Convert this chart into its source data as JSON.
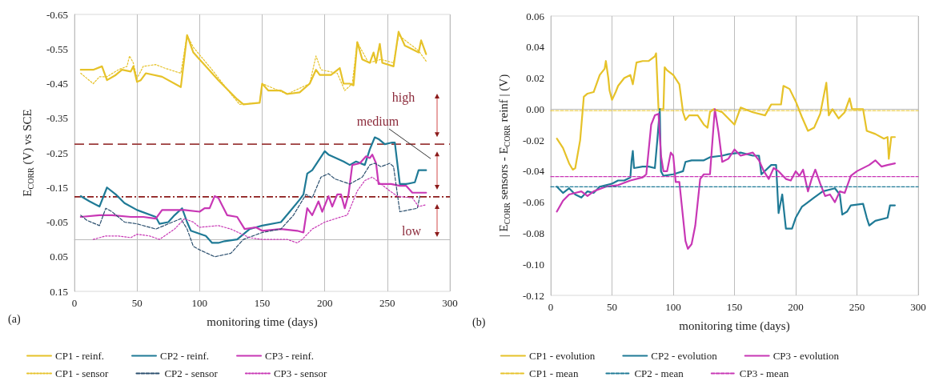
{
  "chart_data": [
    {
      "type": "line",
      "xlabel": "monitoring time (days)",
      "ylabel": "E$_{CORR}$ (V) vs SCE",
      "xlim": [
        0,
        300
      ],
      "xticks": [
        0,
        50,
        100,
        150,
        200,
        250,
        300
      ],
      "ylim": [
        0.15,
        -0.65
      ],
      "yticks": [
        -0.65,
        -0.55,
        -0.45,
        -0.35,
        -0.25,
        -0.15,
        -0.05,
        0.05,
        0.15
      ],
      "grid": "x",
      "legend": "bottom",
      "marker": "none",
      "ref_lines": [
        {
          "axis": "y",
          "value": -0.275,
          "color": "#9b3b3b",
          "line_style": "dashed"
        },
        {
          "axis": "y",
          "value": -0.123,
          "color": "#8b1a1a",
          "line_style": "dotted"
        }
      ],
      "annotations": [
        "high",
        "medium",
        "low",
        "(a)"
      ],
      "series": [
        {
          "name": "CP1 - reinf.",
          "color": "#e6c229",
          "line_style": "solid",
          "x": [
            5,
            15,
            22,
            26,
            33,
            38,
            45,
            47,
            50,
            53,
            57,
            70,
            85,
            90,
            95,
            100,
            115,
            130,
            135,
            148,
            150,
            155,
            165,
            170,
            180,
            188,
            193,
            196,
            205,
            212,
            215,
            220,
            223,
            226,
            230,
            236,
            239,
            241,
            244,
            246,
            255,
            259,
            264,
            275,
            277,
            281
          ],
          "values": [
            -0.49,
            -0.49,
            -0.5,
            -0.46,
            -0.475,
            -0.49,
            -0.485,
            -0.5,
            -0.455,
            -0.46,
            -0.48,
            -0.47,
            -0.44,
            -0.59,
            -0.54,
            -0.52,
            -0.46,
            -0.405,
            -0.39,
            -0.395,
            -0.45,
            -0.43,
            -0.43,
            -0.42,
            -0.425,
            -0.45,
            -0.49,
            -0.475,
            -0.475,
            -0.495,
            -0.45,
            -0.45,
            -0.445,
            -0.57,
            -0.52,
            -0.51,
            -0.54,
            -0.51,
            -0.565,
            -0.51,
            -0.5,
            -0.6,
            -0.56,
            -0.54,
            -0.575,
            -0.535
          ]
        },
        {
          "name": "CP2 - reinf.",
          "color": "#1f7a96",
          "line_style": "solid",
          "x": [
            5,
            12,
            20,
            26,
            33,
            40,
            50,
            65,
            68,
            75,
            80,
            86,
            90,
            93,
            105,
            110,
            115,
            120,
            130,
            140,
            145,
            150,
            165,
            172,
            180,
            183,
            186,
            190,
            200,
            203,
            215,
            220,
            225,
            232,
            236,
            240,
            243,
            248,
            254,
            256,
            260,
            265,
            272,
            275,
            281
          ],
          "values": [
            -0.125,
            -0.11,
            -0.095,
            -0.15,
            -0.13,
            -0.105,
            -0.085,
            -0.065,
            -0.045,
            -0.05,
            -0.07,
            -0.09,
            -0.05,
            -0.025,
            -0.01,
            0.01,
            0.01,
            0.005,
            0.0,
            -0.03,
            -0.035,
            -0.04,
            -0.05,
            -0.08,
            -0.115,
            -0.13,
            -0.19,
            -0.2,
            -0.255,
            -0.245,
            -0.225,
            -0.215,
            -0.225,
            -0.215,
            -0.26,
            -0.295,
            -0.29,
            -0.275,
            -0.28,
            -0.28,
            -0.16,
            -0.16,
            -0.165,
            -0.2,
            -0.2
          ]
        },
        {
          "name": "CP3 - reinf.",
          "color": "#c837b5",
          "line_style": "solid",
          "x": [
            5,
            20,
            30,
            45,
            55,
            65,
            70,
            88,
            100,
            104,
            108,
            112,
            115,
            122,
            130,
            136,
            145,
            150,
            165,
            178,
            183,
            186,
            190,
            195,
            198,
            203,
            206,
            210,
            213,
            216,
            219,
            222,
            228,
            233,
            236,
            238,
            241,
            243,
            253,
            260,
            265,
            270,
            281
          ],
          "values": [
            -0.065,
            -0.07,
            -0.07,
            -0.065,
            -0.065,
            -0.06,
            -0.085,
            -0.085,
            -0.08,
            -0.09,
            -0.09,
            -0.125,
            -0.12,
            -0.07,
            -0.065,
            -0.03,
            -0.035,
            -0.025,
            -0.03,
            -0.025,
            -0.02,
            -0.09,
            -0.07,
            -0.11,
            -0.08,
            -0.125,
            -0.095,
            -0.13,
            -0.13,
            -0.09,
            -0.13,
            -0.215,
            -0.22,
            -0.24,
            -0.235,
            -0.245,
            -0.22,
            -0.16,
            -0.16,
            -0.155,
            -0.155,
            -0.135,
            -0.135
          ]
        },
        {
          "name": "CP1 - sensor",
          "color": "#e6c229",
          "line_style": "dotted",
          "x": [
            5,
            15,
            20,
            26,
            35,
            42,
            44,
            47,
            50,
            55,
            65,
            72,
            85,
            90,
            95,
            110,
            125,
            132,
            148,
            150,
            170,
            188,
            193,
            197,
            210,
            216,
            222,
            226,
            235,
            245,
            255,
            259,
            275,
            281
          ],
          "values": [
            -0.48,
            -0.45,
            -0.47,
            -0.47,
            -0.49,
            -0.5,
            -0.53,
            -0.51,
            -0.465,
            -0.5,
            -0.505,
            -0.495,
            -0.48,
            -0.59,
            -0.555,
            -0.49,
            -0.42,
            -0.39,
            -0.395,
            -0.45,
            -0.42,
            -0.45,
            -0.53,
            -0.49,
            -0.48,
            -0.43,
            -0.45,
            -0.57,
            -0.51,
            -0.52,
            -0.51,
            -0.59,
            -0.545,
            -0.515
          ]
        },
        {
          "name": "CP2 - sensor",
          "color": "#2b4f6e",
          "line_style": "dashed",
          "x": [
            5,
            10,
            20,
            25,
            30,
            40,
            50,
            65,
            85,
            90,
            95,
            100,
            112,
            125,
            135,
            150,
            165,
            175,
            185,
            190,
            197,
            203,
            208,
            220,
            230,
            236,
            240,
            245,
            252,
            255,
            260,
            274,
            276
          ],
          "values": [
            -0.07,
            -0.055,
            -0.04,
            -0.09,
            -0.08,
            -0.05,
            -0.045,
            -0.03,
            -0.06,
            -0.03,
            0.02,
            0.03,
            0.05,
            0.04,
            0.0,
            -0.02,
            -0.03,
            -0.07,
            -0.13,
            -0.12,
            -0.18,
            -0.19,
            -0.175,
            -0.16,
            -0.18,
            -0.215,
            -0.22,
            -0.21,
            -0.22,
            -0.21,
            -0.08,
            -0.09,
            -0.125
          ]
        },
        {
          "name": "CP3 - sensor",
          "color": "#c837b5",
          "line_style": "dotted",
          "x": [
            15,
            25,
            35,
            45,
            50,
            60,
            68,
            80,
            88,
            95,
            100,
            115,
            125,
            140,
            150,
            170,
            178,
            182,
            190,
            200,
            213,
            218,
            226,
            232,
            238,
            245,
            252,
            258,
            270,
            275,
            281
          ],
          "values": [
            0.0,
            -0.01,
            -0.01,
            -0.005,
            -0.015,
            -0.01,
            0.0,
            -0.03,
            -0.06,
            -0.05,
            -0.035,
            -0.04,
            -0.03,
            -0.005,
            0.0,
            0.0,
            0.01,
            0.0,
            -0.03,
            -0.05,
            -0.065,
            -0.07,
            -0.14,
            -0.17,
            -0.18,
            -0.16,
            -0.14,
            -0.125,
            -0.12,
            -0.095,
            -0.1
          ]
        }
      ]
    },
    {
      "type": "line",
      "xlabel": "monitoring time (days)",
      "ylabel": "| E$_{CORR}$ sensors - E$_{CORR}$ reinf | (V)",
      "xlim": [
        0,
        300
      ],
      "xticks": [
        0,
        50,
        100,
        150,
        200,
        250,
        300
      ],
      "ylim": [
        -0.12,
        0.06
      ],
      "yticks": [
        {
          "value": -0.12,
          "label": "-0.12"
        },
        {
          "value": -0.1,
          "label": "-0.10"
        },
        -0.08,
        -0.06,
        -0.04,
        -0.02,
        {
          "value": 0,
          "label": "0.00"
        },
        0.02,
        0.04,
        0.06
      ],
      "grid": "x",
      "legend": "bottom",
      "marker": "none",
      "annotations": [
        "(b)"
      ],
      "series": [
        {
          "name": "CP1 - evolution",
          "color": "#e6c229",
          "line_style": "solid",
          "x": [
            5,
            10,
            15,
            18,
            20,
            24,
            27,
            30,
            35,
            40,
            44,
            45,
            47,
            48,
            50,
            53,
            55,
            60,
            65,
            67,
            70,
            75,
            80,
            85,
            86,
            88,
            92,
            93,
            95,
            100,
            105,
            108,
            110,
            113,
            120,
            125,
            128,
            130,
            133,
            140,
            150,
            155,
            165,
            175,
            180,
            188,
            190,
            195,
            200,
            205,
            210,
            215,
            220,
            225,
            227,
            230,
            235,
            240,
            244,
            246,
            255,
            258,
            265,
            272,
            275,
            276,
            278,
            281
          ],
          "values": [
            -0.019,
            -0.025,
            -0.035,
            -0.039,
            -0.038,
            -0.02,
            0.008,
            0.01,
            0.011,
            0.022,
            0.026,
            0.031,
            0.02,
            0.012,
            0.006,
            0.011,
            0.015,
            0.02,
            0.022,
            0.016,
            0.03,
            0.031,
            0.031,
            0.034,
            0.036,
            0.0,
            0.0,
            0.027,
            0.025,
            0.022,
            0.016,
            -0.002,
            -0.007,
            -0.004,
            -0.004,
            -0.01,
            -0.012,
            -0.002,
            0.0,
            -0.002,
            -0.01,
            0.001,
            -0.002,
            -0.004,
            0.003,
            0.003,
            0.015,
            0.013,
            0.005,
            -0.005,
            -0.014,
            -0.012,
            -0.003,
            0.017,
            -0.004,
            0.0,
            -0.006,
            -0.002,
            0.007,
            0.0,
            0.0,
            -0.014,
            -0.016,
            -0.019,
            -0.018,
            -0.032,
            -0.018,
            -0.018
          ]
        },
        {
          "name": "CP2 - evolution",
          "color": "#1f7a96",
          "line_style": "solid",
          "x": [
            5,
            10,
            15,
            20,
            25,
            30,
            35,
            40,
            50,
            55,
            60,
            65,
            66,
            67,
            68,
            75,
            80,
            85,
            87,
            89,
            90,
            92,
            100,
            108,
            110,
            115,
            125,
            130,
            140,
            145,
            155,
            165,
            170,
            172,
            180,
            184,
            186,
            189,
            192,
            197,
            200,
            205,
            215,
            222,
            232,
            236,
            238,
            242,
            245,
            255,
            258,
            260,
            265,
            275,
            277,
            281
          ],
          "values": [
            -0.05,
            -0.054,
            -0.051,
            -0.055,
            -0.057,
            -0.053,
            -0.054,
            -0.05,
            -0.048,
            -0.046,
            -0.046,
            -0.044,
            -0.033,
            -0.027,
            -0.038,
            -0.037,
            -0.037,
            -0.038,
            -0.02,
            0.0,
            -0.04,
            -0.043,
            -0.042,
            -0.04,
            -0.034,
            -0.033,
            -0.033,
            -0.031,
            -0.03,
            -0.029,
            -0.028,
            -0.03,
            -0.03,
            -0.042,
            -0.036,
            -0.036,
            -0.067,
            -0.055,
            -0.077,
            -0.077,
            -0.07,
            -0.063,
            -0.057,
            -0.053,
            -0.051,
            -0.055,
            -0.068,
            -0.066,
            -0.062,
            -0.061,
            -0.07,
            -0.075,
            -0.072,
            -0.07,
            -0.062,
            -0.062
          ]
        },
        {
          "name": "CP3 - evolution",
          "color": "#c837b5",
          "line_style": "solid",
          "x": [
            5,
            10,
            15,
            20,
            25,
            30,
            35,
            45,
            55,
            65,
            75,
            78,
            82,
            85,
            88,
            90,
            92,
            95,
            98,
            100,
            102,
            105,
            110,
            112,
            115,
            118,
            122,
            125,
            130,
            133,
            134,
            137,
            140,
            145,
            150,
            155,
            165,
            170,
            174,
            178,
            182,
            186,
            192,
            196,
            200,
            203,
            206,
            210,
            213,
            216,
            220,
            224,
            228,
            232,
            236,
            240,
            245,
            250,
            260,
            265,
            270,
            275,
            281
          ],
          "values": [
            -0.066,
            -0.059,
            -0.055,
            -0.054,
            -0.053,
            -0.056,
            -0.053,
            -0.05,
            -0.049,
            -0.046,
            -0.044,
            -0.042,
            -0.01,
            -0.004,
            -0.003,
            -0.03,
            -0.04,
            -0.04,
            -0.028,
            -0.03,
            -0.047,
            -0.047,
            -0.085,
            -0.09,
            -0.087,
            -0.075,
            -0.045,
            -0.042,
            -0.042,
            -0.01,
            0.0,
            -0.015,
            -0.034,
            -0.032,
            -0.026,
            -0.03,
            -0.028,
            -0.033,
            -0.04,
            -0.045,
            -0.038,
            -0.04,
            -0.045,
            -0.046,
            -0.04,
            -0.043,
            -0.039,
            -0.053,
            -0.045,
            -0.039,
            -0.048,
            -0.056,
            -0.055,
            -0.06,
            -0.053,
            -0.054,
            -0.043,
            -0.04,
            -0.036,
            -0.033,
            -0.037,
            -0.036,
            -0.035
          ]
        },
        {
          "name": "CP1 - mean",
          "color": "#e6c229",
          "line_style": "dashed",
          "x": [
            0,
            300
          ],
          "values": [
            -0.001,
            -0.001
          ]
        },
        {
          "name": "CP2 - mean",
          "color": "#1f7a96",
          "line_style": "dashed",
          "x": [
            0,
            300
          ],
          "values": [
            -0.05,
            -0.05
          ]
        },
        {
          "name": "CP3 - mean",
          "color": "#c837b5",
          "line_style": "dashed",
          "x": [
            0,
            300
          ],
          "values": [
            -0.0435,
            -0.0435
          ]
        }
      ]
    }
  ]
}
